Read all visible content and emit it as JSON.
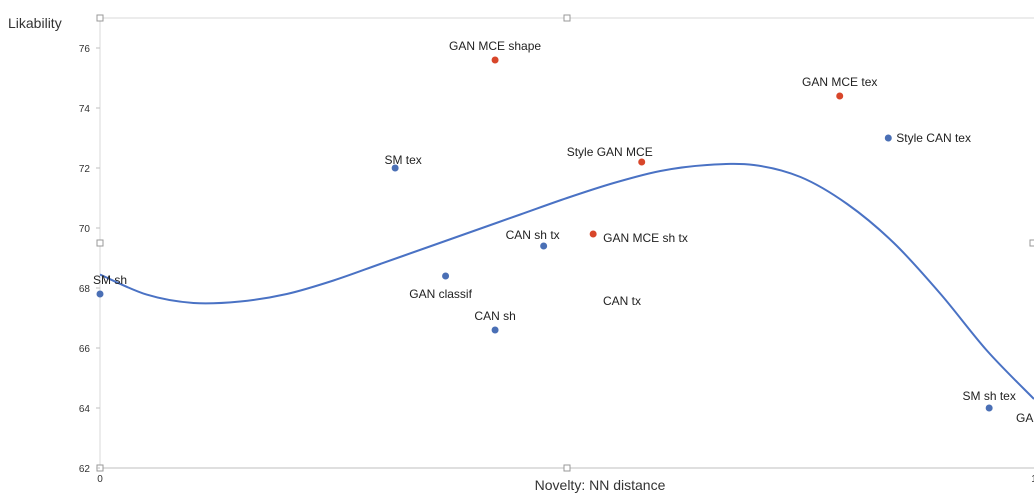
{
  "chart_data": {
    "type": "scatter",
    "xlabel": "Novelty: NN distance",
    "ylabel": "Likability",
    "xlim": [
      0,
      1
    ],
    "ylim": [
      62,
      77
    ],
    "x_ticks": [
      "0",
      "1"
    ],
    "y_ticks": [
      "62",
      "64",
      "66",
      "68",
      "70",
      "72",
      "74",
      "76"
    ],
    "grid": false,
    "colors": {
      "blue": "#4a6fb5",
      "red": "#d8462a",
      "trend": "#4a72c4"
    },
    "series": [
      {
        "color": "#4a6fb5",
        "points": [
          {
            "label": "SM sh",
            "x": 0.0,
            "y": 67.8
          },
          {
            "label": "SM tex",
            "x": 0.316,
            "y": 72.0
          },
          {
            "label": "GAN classif",
            "x": 0.37,
            "y": 68.4
          },
          {
            "label": "CAN sh",
            "x": 0.423,
            "y": 66.6
          },
          {
            "label": "CAN sh tx",
            "x": 0.475,
            "y": 69.4
          },
          {
            "label": "Style CAN tex",
            "x": 0.844,
            "y": 73.0
          },
          {
            "label": "SM sh tex",
            "x": 0.952,
            "y": 64.0
          }
        ]
      },
      {
        "color": "#d8462a",
        "points": [
          {
            "label": "GAN MCE shape",
            "x": 0.423,
            "y": 75.6
          },
          {
            "label": "GAN MCE sh tx",
            "x": 0.528,
            "y": 69.8
          },
          {
            "label": "Style GAN MCE",
            "x": 0.58,
            "y": 72.2
          },
          {
            "label": "GAN MCE tex",
            "x": 0.792,
            "y": 74.4
          }
        ]
      }
    ],
    "floating_labels": [
      "CAN tx",
      "GA"
    ],
    "trendline": {
      "type": "polynomial",
      "x": [
        0.0,
        0.05,
        0.1,
        0.15,
        0.2,
        0.25,
        0.3,
        0.35,
        0.4,
        0.45,
        0.5,
        0.55,
        0.6,
        0.65,
        0.7,
        0.75,
        0.8,
        0.85,
        0.9,
        0.95,
        1.0
      ],
      "y": [
        68.45,
        67.78,
        67.5,
        67.55,
        67.8,
        68.25,
        68.8,
        69.35,
        69.9,
        70.45,
        71.0,
        71.5,
        71.9,
        72.1,
        72.1,
        71.7,
        70.8,
        69.5,
        67.8,
        65.9,
        64.3
      ]
    }
  }
}
